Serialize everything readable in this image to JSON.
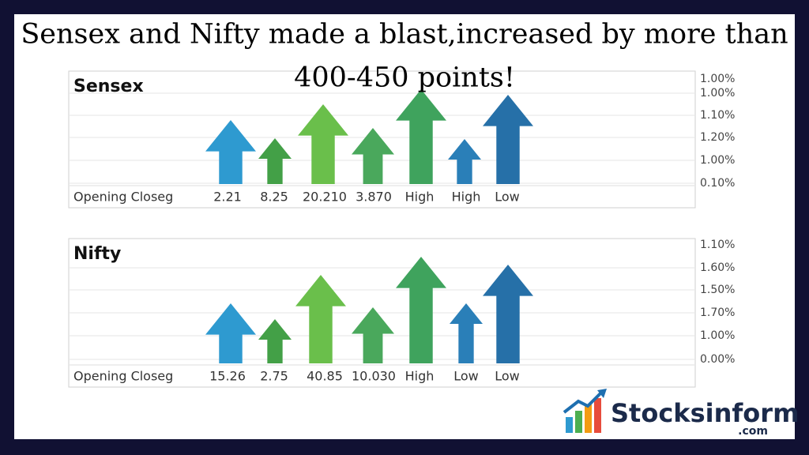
{
  "header": {
    "title_lines": [
      "Sensex and Nifty made a blast,increased by more than",
      "400-450 points!"
    ]
  },
  "panels": [
    {
      "name": "Sensex",
      "axis_labels": [
        "1.00%",
        "1.00%",
        "1.10%",
        "1.20%",
        "1.00%",
        "0.10%"
      ],
      "bottom_labels": [
        "Opening Closeg",
        "2.21",
        "8.25",
        "20.210",
        "3.870",
        "High",
        "High",
        "Low"
      ]
    },
    {
      "name": "Nifty",
      "axis_labels": [
        "1.10%",
        "1.60%",
        "1.50%",
        "1.70%",
        "1.00%",
        "0.00%"
      ],
      "bottom_labels": [
        "Opening Closeg",
        "15.26",
        "2.75",
        "40.85",
        "10.030",
        "High",
        "Low",
        "Low"
      ]
    }
  ],
  "logo": {
    "name": "Stocksinform",
    "domain": ".com"
  }
}
